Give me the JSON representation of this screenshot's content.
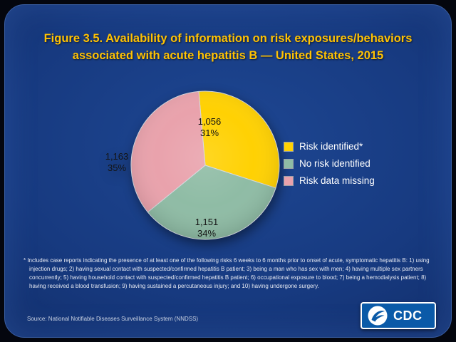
{
  "slide": {
    "title_line1": "Figure 3.5. Availability of information on risk exposures/behaviors",
    "title_line2": "associated with acute hepatitis B — United States, 2015",
    "footnote": "* Includes case reports indicating the presence of at least one of the following risks 6 weeks to 6 months prior to onset of acute, symptomatic hepatitis B:  1) using injection drugs; 2) having sexual contact with suspected/confirmed hepatitis B patient; 3) being a man who has sex with men; 4) having multiple sex partners concurrently; 5) having household contact with suspected/confirmed hepatitis B patient; 6) occupational exposure to blood; 7) being a hemodialysis patient; 8) having received a blood transfusion; 9) having sustained a percutaneous injury; and 10) having undergone surgery.",
    "source": "Source:  National Notifiable Diseases Surveillance System (NNDSS)"
  },
  "logo": {
    "cdc_text": "CDC"
  },
  "chart_data": {
    "type": "pie",
    "title": "Availability of information on risk exposures/behaviors associated with acute hepatitis B — United States, 2015",
    "categories": [
      "Risk identified*",
      "No risk identified",
      "Risk data missing"
    ],
    "values": [
      1056,
      1151,
      1163
    ],
    "percents": [
      31,
      34,
      35
    ],
    "value_labels": [
      "1,056",
      "1,151",
      "1,163"
    ],
    "percent_labels": [
      "31%",
      "34%",
      "35%"
    ],
    "colors": [
      "#ffd103",
      "#8fbca5",
      "#e9a2ac"
    ],
    "start_angle_deg": -5,
    "legend_position": "right",
    "background_color": "#173a80",
    "title_color": "#ffc203"
  }
}
